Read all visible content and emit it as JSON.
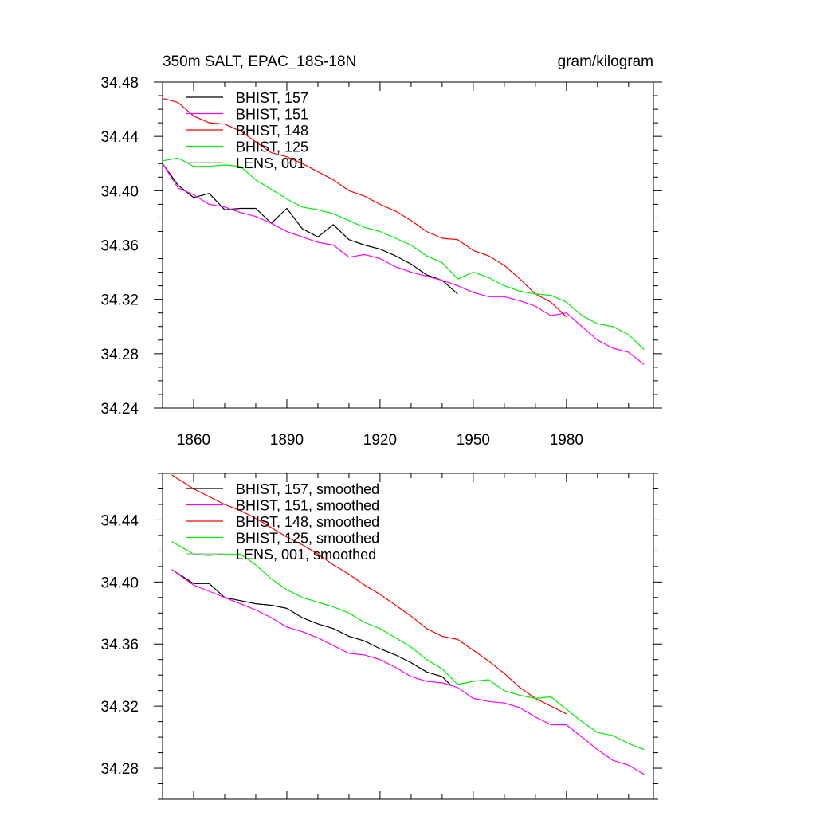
{
  "header": {
    "title": "350m SALT, EPAC_18S-18N",
    "units": "gram/kilogram"
  },
  "colors": {
    "BHIST_157": "#000000",
    "BHIST_151": "#ff00ff",
    "BHIST_148": "#ff0000",
    "BHIST_125": "#00ee00",
    "LENS_001": "#aaaaaa"
  },
  "chart_data": [
    {
      "type": "line",
      "title": "350m SALT, EPAC_18S-18N",
      "units_label": "gram/kilogram",
      "xlabel": "",
      "ylabel": "",
      "xlim": [
        1850,
        2008
      ],
      "ylim": [
        34.24,
        34.48
      ],
      "x_ticks": [
        1860,
        1890,
        1920,
        1950,
        1980
      ],
      "y_ticks": [
        "34.24",
        "34.28",
        "34.32",
        "34.36",
        "34.40",
        "34.44",
        "34.48"
      ],
      "legend_position": "top-left",
      "legend": [
        "BHIST, 157",
        "BHIST, 151",
        "BHIST, 148",
        "BHIST, 125",
        "LENS, 001"
      ],
      "series": [
        {
          "name": "BHIST, 157",
          "color": "#000000",
          "x": [
            1850,
            1855,
            1860,
            1865,
            1870,
            1875,
            1880,
            1885,
            1890,
            1895,
            1900,
            1905,
            1910,
            1915,
            1920,
            1925,
            1930,
            1935,
            1940,
            1945
          ],
          "y": [
            34.42,
            34.404,
            34.395,
            34.398,
            34.386,
            34.387,
            34.387,
            34.376,
            34.387,
            34.372,
            34.366,
            34.375,
            34.364,
            34.36,
            34.357,
            34.352,
            34.346,
            34.338,
            34.334,
            34.324
          ]
        },
        {
          "name": "BHIST, 151",
          "color": "#ff00ff",
          "x": [
            1850,
            1855,
            1860,
            1865,
            1870,
            1875,
            1880,
            1885,
            1890,
            1895,
            1900,
            1905,
            1910,
            1915,
            1920,
            1925,
            1930,
            1935,
            1940,
            1945,
            1950,
            1955,
            1960,
            1965,
            1970,
            1975,
            1980,
            1985,
            1990,
            1995,
            2000,
            2005
          ],
          "y": [
            34.42,
            34.402,
            34.397,
            34.39,
            34.388,
            34.384,
            34.381,
            34.376,
            34.37,
            34.366,
            34.362,
            34.36,
            34.351,
            34.353,
            34.35,
            34.344,
            34.34,
            34.337,
            34.334,
            34.33,
            34.325,
            34.322,
            34.322,
            34.319,
            34.315,
            34.308,
            34.31,
            34.3,
            34.29,
            34.284,
            34.281,
            34.272
          ]
        },
        {
          "name": "BHIST, 148",
          "color": "#ff0000",
          "x": [
            1850,
            1855,
            1860,
            1865,
            1870,
            1875,
            1880,
            1885,
            1890,
            1895,
            1900,
            1905,
            1910,
            1915,
            1920,
            1925,
            1930,
            1935,
            1940,
            1945,
            1950,
            1955,
            1960,
            1965,
            1970,
            1975,
            1980
          ],
          "y": [
            34.468,
            34.465,
            34.455,
            34.45,
            34.449,
            34.444,
            34.436,
            34.428,
            34.425,
            34.42,
            34.414,
            34.408,
            34.4,
            34.396,
            34.39,
            34.385,
            34.378,
            34.37,
            34.365,
            34.364,
            34.356,
            34.352,
            34.345,
            34.335,
            34.324,
            34.318,
            34.307
          ]
        },
        {
          "name": "BHIST, 125",
          "color": "#00ee00",
          "x": [
            1850,
            1855,
            1860,
            1865,
            1870,
            1875,
            1880,
            1885,
            1890,
            1895,
            1900,
            1905,
            1910,
            1915,
            1920,
            1925,
            1930,
            1935,
            1940,
            1945,
            1950,
            1955,
            1960,
            1965,
            1970,
            1975,
            1980,
            1985,
            1990,
            1995,
            2000,
            2005
          ],
          "y": [
            34.422,
            34.424,
            34.418,
            34.418,
            34.419,
            34.418,
            34.408,
            34.401,
            34.394,
            34.388,
            34.386,
            34.383,
            34.378,
            34.373,
            34.37,
            34.365,
            34.36,
            34.352,
            34.347,
            34.335,
            34.34,
            34.336,
            34.33,
            34.326,
            34.324,
            34.323,
            34.318,
            34.308,
            34.302,
            34.3,
            34.294,
            34.283
          ]
        },
        {
          "name": "LENS, 001",
          "color": "#aaaaaa",
          "x": [],
          "y": []
        }
      ]
    },
    {
      "type": "line",
      "title": "",
      "xlabel": "",
      "ylabel": "",
      "xlim": [
        1850,
        2008
      ],
      "ylim": [
        34.26,
        34.47
      ],
      "y_ticks": [
        "34.28",
        "34.32",
        "34.36",
        "34.40",
        "34.44"
      ],
      "legend_position": "top-left",
      "legend": [
        "BHIST, 157, smoothed",
        "BHIST, 151, smoothed",
        "BHIST, 148, smoothed",
        "BHIST, 125, smoothed",
        "LENS, 001, smoothed"
      ],
      "series": [
        {
          "name": "BHIST, 157, smoothed",
          "color": "#000000",
          "x": [
            1853,
            1860,
            1865,
            1870,
            1875,
            1880,
            1885,
            1890,
            1895,
            1900,
            1905,
            1910,
            1915,
            1920,
            1925,
            1930,
            1935,
            1940,
            1943
          ],
          "y": [
            34.408,
            34.399,
            34.399,
            34.39,
            34.388,
            34.386,
            34.385,
            34.383,
            34.377,
            34.373,
            34.37,
            34.365,
            34.362,
            34.357,
            34.353,
            34.348,
            34.342,
            34.339,
            34.333
          ]
        },
        {
          "name": "BHIST, 151, smoothed",
          "color": "#ff00ff",
          "x": [
            1853,
            1860,
            1865,
            1870,
            1875,
            1880,
            1885,
            1890,
            1895,
            1900,
            1905,
            1910,
            1915,
            1920,
            1925,
            1930,
            1935,
            1940,
            1945,
            1950,
            1955,
            1960,
            1965,
            1970,
            1975,
            1980,
            1985,
            1990,
            1995,
            2000,
            2005
          ],
          "y": [
            34.408,
            34.398,
            34.394,
            34.39,
            34.386,
            34.382,
            34.377,
            34.371,
            34.368,
            34.364,
            34.359,
            34.354,
            34.353,
            34.35,
            34.345,
            34.339,
            34.336,
            34.335,
            34.332,
            34.325,
            34.323,
            34.322,
            34.319,
            34.313,
            34.308,
            34.308,
            34.3,
            34.292,
            34.285,
            34.282,
            34.276
          ]
        },
        {
          "name": "BHIST, 148, smoothed",
          "color": "#ff0000",
          "x": [
            1853,
            1860,
            1865,
            1870,
            1875,
            1880,
            1885,
            1890,
            1895,
            1900,
            1905,
            1910,
            1915,
            1920,
            1925,
            1930,
            1935,
            1940,
            1945,
            1950,
            1955,
            1960,
            1965,
            1970,
            1975,
            1980
          ],
          "y": [
            34.469,
            34.46,
            34.455,
            34.45,
            34.446,
            34.441,
            34.435,
            34.429,
            34.424,
            34.418,
            34.411,
            34.405,
            34.398,
            34.392,
            34.385,
            34.378,
            34.37,
            34.365,
            34.363,
            34.356,
            34.349,
            34.341,
            34.332,
            34.325,
            34.32,
            34.315
          ]
        },
        {
          "name": "BHIST, 125, smoothed",
          "color": "#00ee00",
          "x": [
            1853,
            1860,
            1865,
            1870,
            1875,
            1880,
            1885,
            1890,
            1895,
            1900,
            1905,
            1910,
            1915,
            1920,
            1925,
            1930,
            1935,
            1940,
            1945,
            1950,
            1955,
            1960,
            1965,
            1970,
            1975,
            1980,
            1985,
            1990,
            1995,
            2000,
            2005
          ],
          "y": [
            34.426,
            34.418,
            34.417,
            34.418,
            34.418,
            34.411,
            34.402,
            34.395,
            34.39,
            34.387,
            34.384,
            34.38,
            34.374,
            34.37,
            34.364,
            34.358,
            34.35,
            34.344,
            34.334,
            34.336,
            34.337,
            34.33,
            34.327,
            34.325,
            34.326,
            34.318,
            34.31,
            34.303,
            34.301,
            34.296,
            34.292
          ]
        },
        {
          "name": "LENS, 001, smoothed",
          "color": "#aaaaaa",
          "x": [],
          "y": []
        }
      ]
    }
  ]
}
